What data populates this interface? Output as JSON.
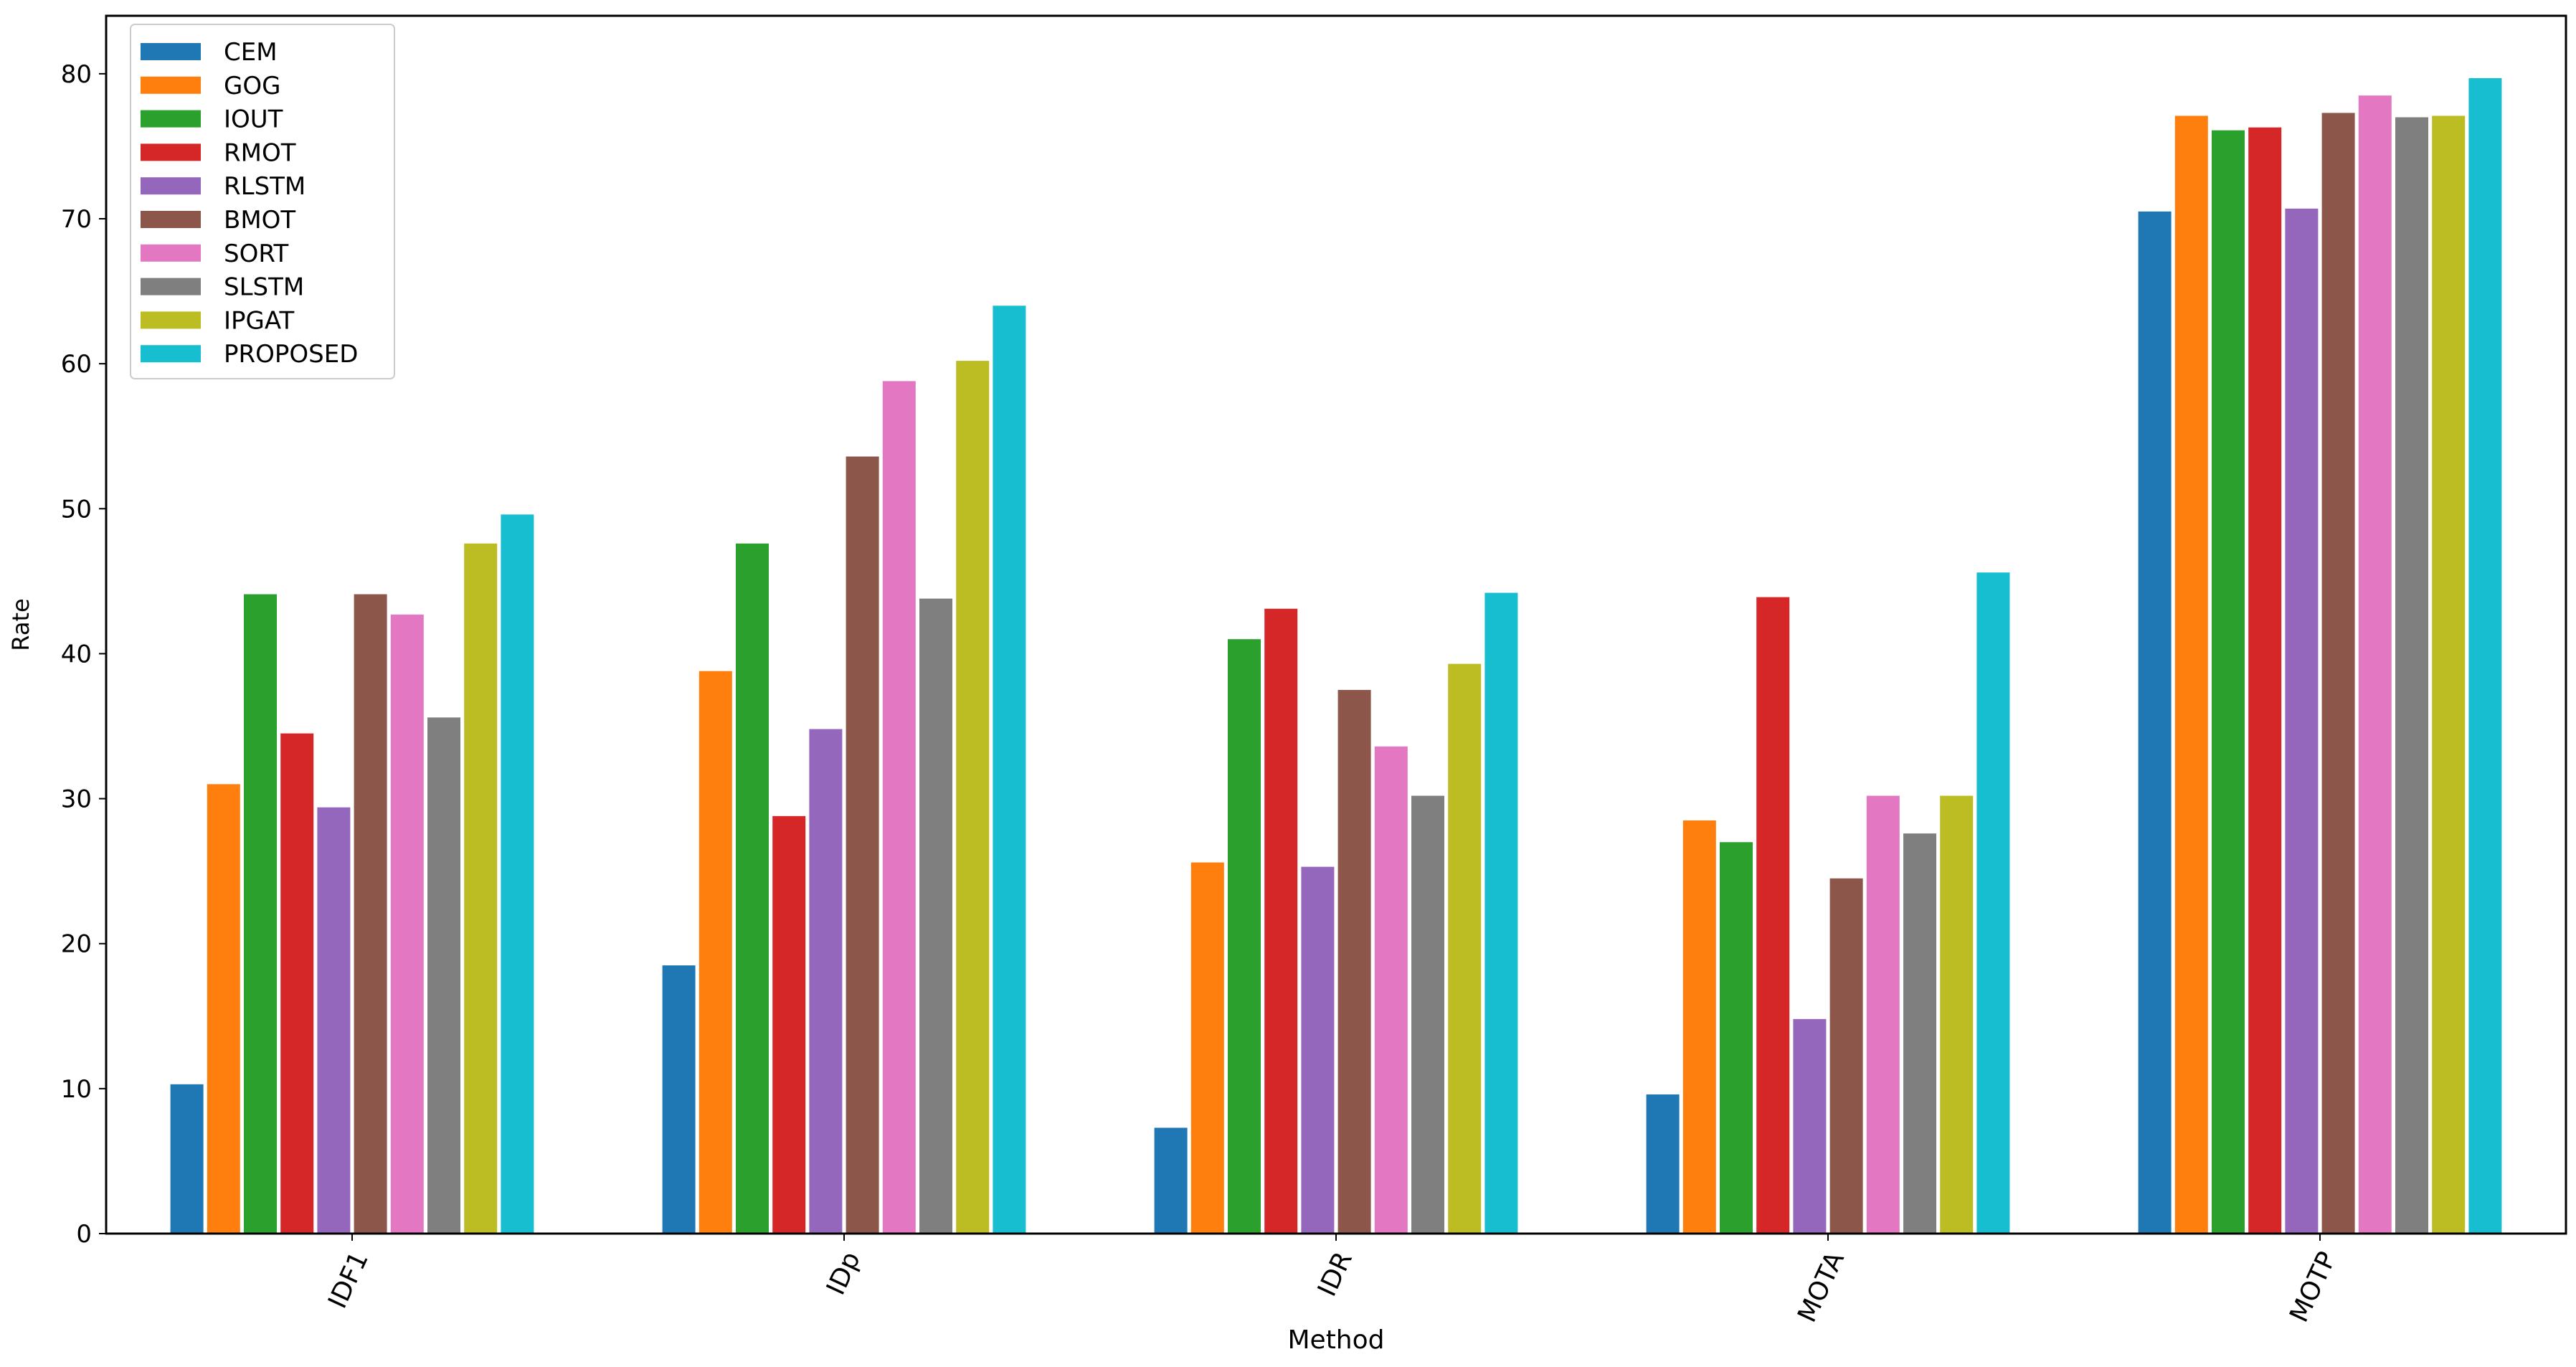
{
  "chart_data": {
    "type": "bar",
    "title": "",
    "xlabel": "Method",
    "ylabel": "Rate",
    "ylim": [
      0,
      84
    ],
    "yticks": [
      0,
      10,
      20,
      30,
      40,
      50,
      60,
      70,
      80
    ],
    "grid": false,
    "legend_position": "top-left",
    "categories": [
      "IDF1",
      "IDp",
      "IDR",
      "MOTA",
      "MOTP"
    ],
    "series": [
      {
        "name": "CEM",
        "color": "#1f77b4",
        "values": [
          10.3,
          18.5,
          7.3,
          9.6,
          70.5
        ]
      },
      {
        "name": "GOG",
        "color": "#ff7f0e",
        "values": [
          31.0,
          38.8,
          25.6,
          28.5,
          77.1
        ]
      },
      {
        "name": "IOUT",
        "color": "#2ca02c",
        "values": [
          44.1,
          47.6,
          41.0,
          27.0,
          76.1
        ]
      },
      {
        "name": "RMOT",
        "color": "#d62728",
        "values": [
          34.5,
          28.8,
          43.1,
          43.9,
          76.3
        ]
      },
      {
        "name": "RLSTM",
        "color": "#9467bd",
        "values": [
          29.4,
          34.8,
          25.3,
          14.8,
          70.7
        ]
      },
      {
        "name": "BMOT",
        "color": "#8c564b",
        "values": [
          44.1,
          53.6,
          37.5,
          24.5,
          77.3
        ]
      },
      {
        "name": "SORT",
        "color": "#e377c2",
        "values": [
          42.7,
          58.8,
          33.6,
          30.2,
          78.5
        ]
      },
      {
        "name": "SLSTM",
        "color": "#7f7f7f",
        "values": [
          35.6,
          43.8,
          30.2,
          27.6,
          77.0
        ]
      },
      {
        "name": "IPGAT",
        "color": "#bcbd22",
        "values": [
          47.6,
          60.2,
          39.3,
          30.2,
          77.1
        ]
      },
      {
        "name": "PROPOSED",
        "color": "#17becf",
        "values": [
          49.6,
          64.0,
          44.2,
          45.6,
          79.7
        ]
      }
    ]
  }
}
